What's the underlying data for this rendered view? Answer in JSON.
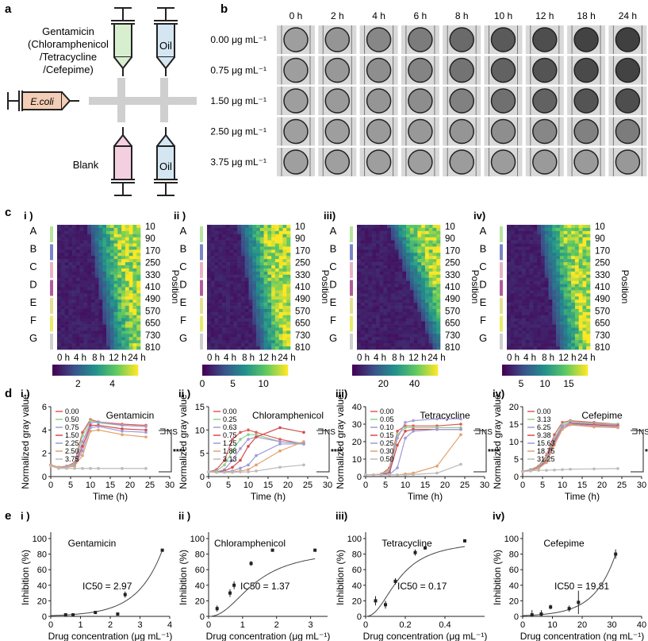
{
  "panel_labels": {
    "a": "a",
    "b": "b",
    "c": "c",
    "d": "d",
    "e": "e"
  },
  "panel_a": {
    "syringe_drug_lines": [
      "Gentamicin",
      "(Chloramphenicol",
      "/Tetracycline",
      "/Cefepime)"
    ],
    "syringe_oil": "Oil",
    "syringe_ecoli": "E.coli",
    "syringe_blank": "Blank",
    "syringe_oil2": "Oil",
    "colors": {
      "drug": "#d8efcf",
      "oil": "#d4e6f2",
      "ecoli": "#f3cdb5",
      "blank": "#f4cfe0",
      "junction": "#cfcfcf"
    }
  },
  "panel_b": {
    "time_labels": [
      "0 h",
      "2 h",
      "4 h",
      "6 h",
      "8 h",
      "10 h",
      "12 h",
      "18 h",
      "24 h"
    ],
    "concentration_labels": [
      "0.00 μg mL⁻¹",
      "0.75 μg mL⁻¹",
      "1.50 μg mL⁻¹",
      "2.50 μg mL⁻¹",
      "3.75 μg mL⁻¹"
    ],
    "darkness": [
      [
        0.25,
        0.3,
        0.38,
        0.45,
        0.55,
        0.65,
        0.72,
        0.78,
        0.8
      ],
      [
        0.25,
        0.28,
        0.34,
        0.4,
        0.5,
        0.6,
        0.68,
        0.74,
        0.78
      ],
      [
        0.25,
        0.27,
        0.3,
        0.35,
        0.42,
        0.52,
        0.6,
        0.68,
        0.72
      ],
      [
        0.24,
        0.25,
        0.27,
        0.28,
        0.3,
        0.34,
        0.38,
        0.42,
        0.45
      ],
      [
        0.24,
        0.24,
        0.25,
        0.25,
        0.26,
        0.26,
        0.27,
        0.27,
        0.28
      ]
    ]
  },
  "panel_c": {
    "sub_labels": [
      "i )",
      "ii )",
      "iii)",
      "iv)"
    ],
    "row_letters": [
      "A",
      "B",
      "C",
      "D",
      "E",
      "F",
      "G"
    ],
    "row_colors": [
      "#b7e4a1",
      "#7b86c8",
      "#e7b3c4",
      "#b15c98",
      "#e6df93",
      "#e9ec6a",
      "#cfcfcf"
    ],
    "position_ticks": [
      "10",
      "90",
      "170",
      "250",
      "330",
      "410",
      "490",
      "570",
      "650",
      "730",
      "810"
    ],
    "position_label": "Position",
    "time_ticks": [
      "0 h",
      "4 h",
      "8 h",
      "12 h",
      "24 h"
    ],
    "colorbars": [
      {
        "ticks": [
          "2",
          "4"
        ],
        "range": [
          0.5,
          5.5
        ]
      },
      {
        "ticks": [
          "0",
          "5",
          "10"
        ],
        "range": [
          0,
          14
        ]
      },
      {
        "ticks": [
          "20",
          "40"
        ],
        "range": [
          0,
          55
        ]
      },
      {
        "ticks": [
          "5",
          "10",
          "15"
        ],
        "range": [
          1,
          19
        ]
      }
    ],
    "onset_column": [
      3,
      2,
      2,
      2
    ],
    "colormap": [
      "#440154",
      "#3b528b",
      "#21918c",
      "#5ec962",
      "#fde725"
    ]
  },
  "panel_d": {
    "sub_labels": [
      "i )",
      "ii )",
      "iii)",
      "iv)"
    ],
    "ylabel": "Normalized gray value",
    "xlabel": "Time (h)",
    "ns_label": "NS",
    "sig_label": "****",
    "charts": [
      {
        "type": "line",
        "title": "Gentamicin",
        "x": [
          0,
          2,
          4,
          6,
          8,
          10,
          12,
          18,
          24
        ],
        "ylim": [
          0,
          6
        ],
        "yticks": [
          0,
          2,
          4,
          6
        ],
        "xlim": [
          0,
          30
        ],
        "xticks": [
          0,
          5,
          10,
          15,
          20,
          25,
          30
        ],
        "legend": [
          "0.00",
          "0.50",
          "0.75",
          "1.50",
          "2.25",
          "2.50",
          "3.75"
        ],
        "colors": [
          "#e15a5a",
          "#8fd18f",
          "#a59bd3",
          "#d64a4a",
          "#9a9ad8",
          "#e3a06a",
          "#bbbbbb"
        ],
        "series": [
          [
            1.0,
            0.8,
            0.9,
            1.2,
            3.8,
            4.9,
            4.7,
            4.5,
            4.4
          ],
          [
            1.0,
            0.8,
            0.9,
            1.1,
            3.5,
            4.8,
            4.6,
            4.4,
            4.3
          ],
          [
            1.0,
            0.8,
            0.9,
            1.0,
            3.0,
            4.6,
            4.7,
            4.4,
            4.3
          ],
          [
            1.0,
            0.8,
            0.8,
            0.9,
            2.6,
            4.4,
            4.4,
            4.1,
            4.0
          ],
          [
            1.0,
            0.8,
            0.8,
            0.9,
            2.2,
            4.2,
            4.3,
            3.9,
            3.8
          ],
          [
            1.0,
            0.8,
            0.8,
            0.9,
            1.8,
            3.9,
            4.0,
            3.6,
            3.4
          ],
          [
            0.9,
            0.7,
            0.7,
            0.7,
            0.7,
            0.7,
            0.7,
            0.7,
            0.7
          ]
        ]
      },
      {
        "type": "line",
        "title": "Chloramphenicol",
        "x": [
          0,
          2,
          4,
          6,
          8,
          10,
          12,
          18,
          24
        ],
        "ylim": [
          0,
          15
        ],
        "yticks": [
          0,
          5,
          10,
          15
        ],
        "xlim": [
          0,
          30
        ],
        "xticks": [
          0,
          5,
          10,
          15,
          20,
          25,
          30
        ],
        "legend": [
          "0.00",
          "0.25",
          "0.63",
          "0.75",
          "1.25",
          "1.88",
          "3.13"
        ],
        "colors": [
          "#e15a5a",
          "#8fd18f",
          "#a59bd3",
          "#d64a4a",
          "#9a9ad8",
          "#e3a06a",
          "#bbbbbb"
        ],
        "series": [
          [
            1,
            1.5,
            3.5,
            8.0,
            9.5,
            10.0,
            9.5,
            8.0,
            7.0
          ],
          [
            1,
            1.2,
            2.5,
            5.5,
            8.0,
            9.0,
            9.0,
            7.5,
            7.0
          ],
          [
            1,
            1.0,
            1.5,
            3.5,
            6.0,
            8.0,
            8.5,
            7.5,
            7.2
          ],
          [
            1,
            1.0,
            1.2,
            2.0,
            3.5,
            6.5,
            8.5,
            10.5,
            9.5
          ],
          [
            1,
            1.0,
            1.0,
            1.2,
            1.8,
            2.5,
            4.5,
            7.0,
            7.0
          ],
          [
            1,
            0.9,
            0.9,
            1.0,
            1.2,
            1.5,
            2.5,
            5.5,
            7.5
          ],
          [
            1,
            0.9,
            0.9,
            0.9,
            1.0,
            1.0,
            1.2,
            2.0,
            2.5
          ]
        ]
      },
      {
        "type": "line",
        "title": "Tetracycline",
        "x": [
          0,
          2,
          4,
          6,
          8,
          10,
          12,
          18,
          24
        ],
        "ylim": [
          0,
          40
        ],
        "yticks": [
          0,
          10,
          20,
          30,
          40
        ],
        "xlim": [
          0,
          30
        ],
        "xticks": [
          0,
          5,
          10,
          15,
          20,
          25,
          30
        ],
        "legend": [
          "0.00",
          "0.05",
          "0.10",
          "0.15",
          "0.25",
          "0.30",
          "0.50"
        ],
        "colors": [
          "#e15a5a",
          "#8fd18f",
          "#a59bd3",
          "#d64a4a",
          "#9a9ad8",
          "#e3a06a",
          "#bbbbbb"
        ],
        "series": [
          [
            1,
            1,
            1.5,
            5,
            26,
            29,
            29,
            29,
            30
          ],
          [
            1,
            1,
            1.3,
            4,
            24,
            28,
            28,
            28,
            28
          ],
          [
            1,
            1,
            1.2,
            3,
            22,
            31,
            32,
            33,
            33
          ],
          [
            1,
            1,
            1.1,
            2,
            18,
            26,
            27,
            27,
            27
          ],
          [
            1,
            1,
            1,
            1.2,
            5,
            22,
            26,
            27,
            27
          ],
          [
            1,
            1,
            1,
            1,
            1,
            1.5,
            2,
            6,
            24
          ],
          [
            1,
            1,
            1,
            1,
            1,
            1,
            1.2,
            2,
            7
          ]
        ]
      },
      {
        "type": "line",
        "title": "Cefepime",
        "x": [
          0,
          2,
          4,
          6,
          8,
          10,
          12,
          18,
          24
        ],
        "ylim": [
          0,
          20
        ],
        "yticks": [
          0,
          5,
          10,
          15,
          20
        ],
        "xlim": [
          0,
          30
        ],
        "xticks": [
          0,
          5,
          10,
          15,
          20,
          25,
          30
        ],
        "legend": [
          "0.00",
          "3.13",
          "6.25",
          "9.38",
          "15.63",
          "18.75",
          "31.25"
        ],
        "colors": [
          "#e15a5a",
          "#8fd18f",
          "#a59bd3",
          "#d64a4a",
          "#9a9ad8",
          "#e3a06a",
          "#bbbbbb"
        ],
        "series": [
          [
            1.5,
            2,
            3,
            6,
            12,
            15.5,
            16,
            15.5,
            15
          ],
          [
            1.5,
            2,
            2.8,
            5.5,
            11,
            15,
            15.8,
            15.2,
            15
          ],
          [
            1.5,
            1.9,
            2.6,
            5,
            10.5,
            14.5,
            15.5,
            15,
            14.8
          ],
          [
            1.5,
            1.8,
            2.5,
            4.5,
            10,
            14,
            15.2,
            14.8,
            14.5
          ],
          [
            1.5,
            1.8,
            2.4,
            4.2,
            9.5,
            14,
            15,
            14.5,
            14.2
          ],
          [
            1.5,
            1.7,
            2.3,
            4,
            9,
            13.5,
            14.8,
            14.2,
            14
          ],
          [
            1.4,
            1.6,
            1.8,
            1.8,
            1.9,
            2,
            2.1,
            2.2,
            2.3
          ]
        ]
      }
    ]
  },
  "panel_e": {
    "sub_labels": [
      "i )",
      "ii )",
      "iii)",
      "iv)"
    ],
    "ylabel": "Inhibition (%)",
    "charts": [
      {
        "type": "scatter",
        "title": "Gentamicin",
        "ic50_text": "IC50 = 2.97",
        "xlabel": "Drug concentration (μg mL⁻¹)",
        "x": [
          0.5,
          0.75,
          1.5,
          2.25,
          2.5,
          3.75
        ],
        "y": [
          2,
          2,
          5,
          3,
          28,
          85
        ],
        "err": [
          1,
          1,
          1,
          1,
          4,
          1
        ],
        "xlim": [
          0,
          4
        ],
        "xticks": [
          0,
          1,
          2,
          3,
          4
        ],
        "ylim": [
          0,
          100
        ],
        "yticks": [
          0,
          20,
          40,
          60,
          80,
          100
        ]
      },
      {
        "type": "scatter",
        "title": "Chloramphenicol",
        "ic50_text": "IC50 = 1.37",
        "xlabel": "Drug concentration (μg mL⁻¹)",
        "x": [
          0.25,
          0.63,
          0.75,
          1.25,
          1.88,
          3.13
        ],
        "y": [
          10,
          30,
          40,
          68,
          85,
          85
        ],
        "err": [
          4,
          5,
          5,
          3,
          1,
          1
        ],
        "xlim": [
          0,
          3.5
        ],
        "xticks": [
          0,
          1,
          2,
          3
        ],
        "ylim": [
          0,
          100
        ],
        "yticks": [
          0,
          20,
          40,
          60,
          80,
          100
        ]
      },
      {
        "type": "scatter",
        "title": "Tetracycline",
        "ic50_text": "IC50 = 0.17",
        "xlabel": "Drug concentration (μg mL⁻¹)",
        "x": [
          0.05,
          0.1,
          0.15,
          0.25,
          0.3,
          0.5
        ],
        "y": [
          20,
          15,
          45,
          82,
          88,
          97
        ],
        "err": [
          6,
          5,
          4,
          4,
          2,
          1
        ],
        "xlim": [
          0,
          0.6
        ],
        "xticks": [
          0,
          0.2,
          0.4
        ],
        "ylim": [
          0,
          100
        ],
        "yticks": [
          0,
          20,
          40,
          60,
          80,
          100
        ]
      },
      {
        "type": "scatter",
        "title": "Cefepime",
        "ic50_text": "IC50 = 19.81",
        "xlabel": "Drug concentration (ng mL⁻¹)",
        "x": [
          3.13,
          6.25,
          9.38,
          15.63,
          18.75,
          31.25
        ],
        "y": [
          2,
          3,
          12,
          10,
          18,
          80
        ],
        "err": [
          6,
          5,
          3,
          4,
          15,
          6
        ],
        "xlim": [
          0,
          40
        ],
        "xticks": [
          0,
          10,
          20,
          30,
          40
        ],
        "ylim": [
          0,
          100
        ],
        "yticks": [
          0,
          20,
          40,
          60,
          80,
          100
        ]
      }
    ]
  }
}
